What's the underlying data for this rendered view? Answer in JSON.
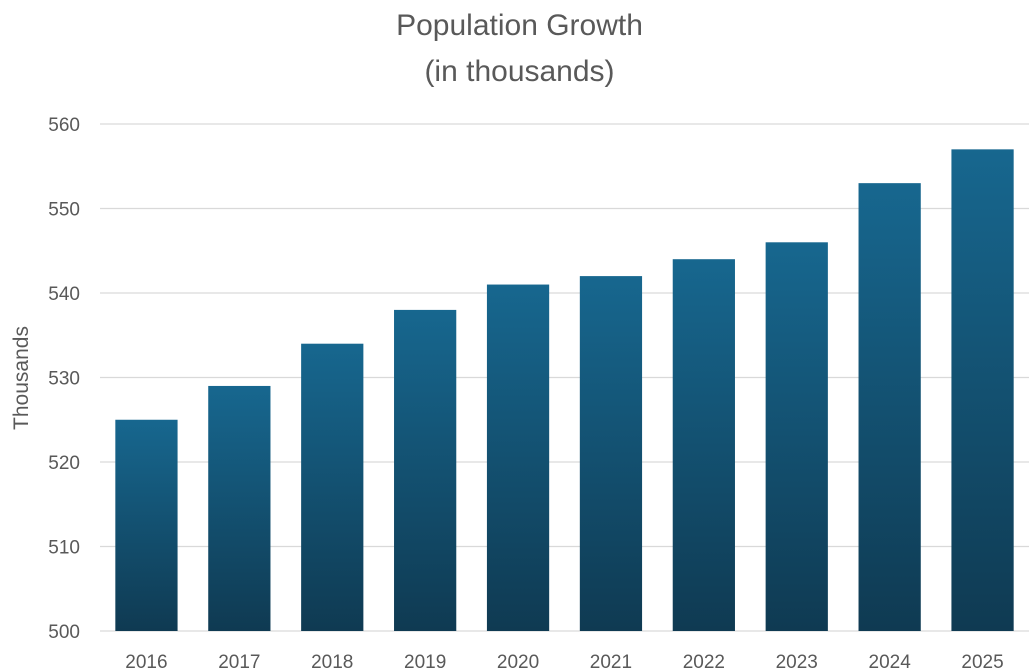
{
  "chart_data": {
    "type": "bar",
    "title": "Population Growth",
    "subtitle": "(in thousands)",
    "ylabel": "Thousands",
    "xlabel": "",
    "categories": [
      "2016",
      "2017",
      "2018",
      "2019",
      "2020",
      "2021",
      "2022",
      "2023",
      "2024",
      "2025"
    ],
    "series": [
      {
        "values": [
          525,
          529,
          534,
          538,
          541,
          542,
          544,
          546,
          553,
          557
        ]
      }
    ],
    "ylim": [
      500,
      560
    ],
    "yticks": [
      "500",
      "510",
      "520",
      "530",
      "540",
      "550",
      "560"
    ],
    "grid": "horizontal",
    "legend": "none",
    "colors": {
      "bar_top": "#17678f",
      "bar_bottom": "#0f3a52",
      "grid": "#d9d9d9",
      "text": "#595959"
    }
  }
}
